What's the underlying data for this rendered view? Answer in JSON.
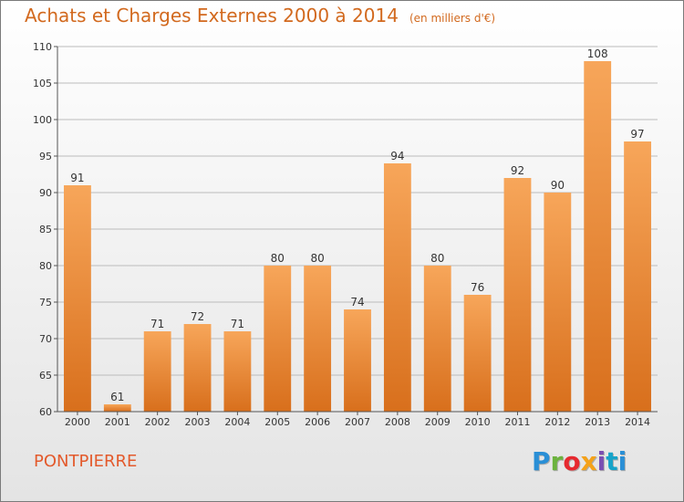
{
  "chart_data": {
    "type": "bar",
    "title": "Achats et Charges Externes 2000 à 2014",
    "subtitle": "(en milliers d'€)",
    "categories": [
      "2000",
      "2001",
      "2002",
      "2003",
      "2004",
      "2005",
      "2006",
      "2007",
      "2008",
      "2009",
      "2010",
      "2011",
      "2012",
      "2013",
      "2014"
    ],
    "values": [
      91,
      61,
      71,
      72,
      71,
      80,
      80,
      74,
      94,
      80,
      76,
      92,
      90,
      108,
      97
    ],
    "ylim": [
      60,
      110
    ],
    "yticks": [
      60,
      65,
      70,
      75,
      80,
      85,
      90,
      95,
      100,
      105,
      110
    ],
    "grid": true,
    "bar_color_top": "#f7a65a",
    "bar_color_bottom": "#d86f1c",
    "grid_color": "#bbbbbb"
  },
  "footer": {
    "commune": "PONTPIERRE",
    "logo_text": "Proxiti",
    "logo_letters": [
      "P",
      "r",
      "o",
      "x",
      "i",
      "t",
      "i"
    ]
  }
}
